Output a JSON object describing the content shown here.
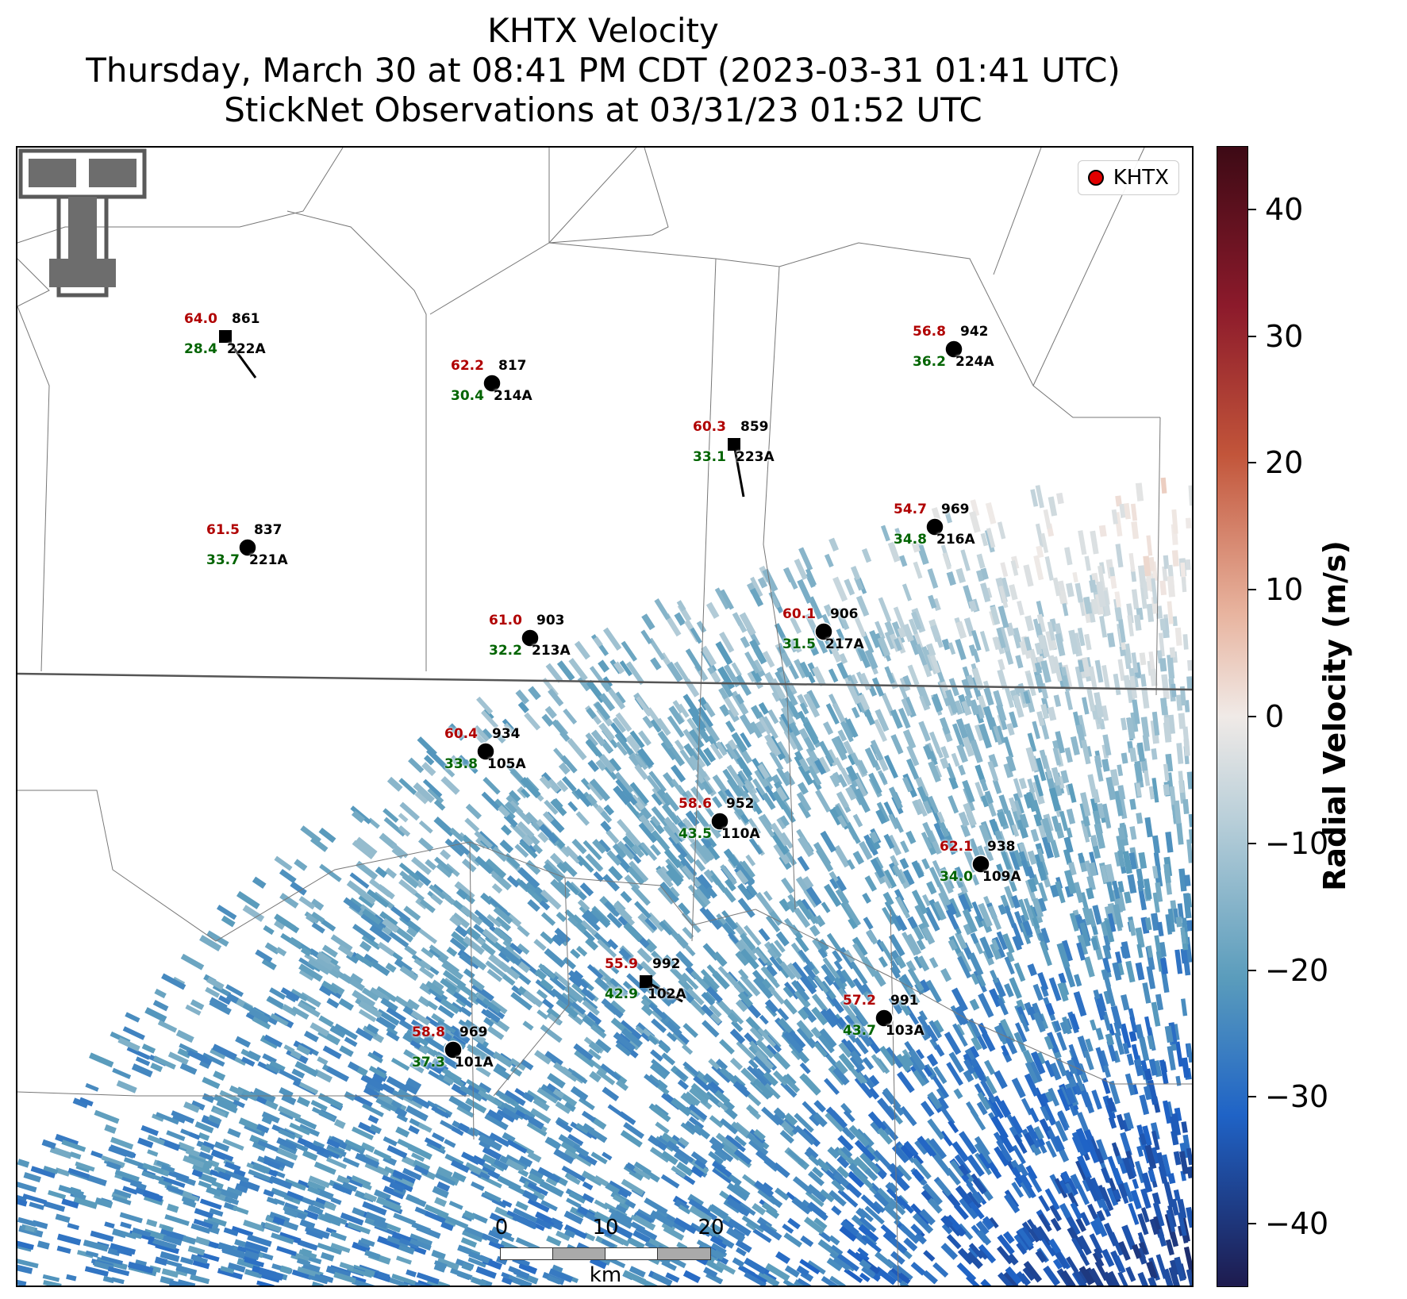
{
  "title": {
    "line1": "KHTX Velocity",
    "line2": "Thursday, March 30 at 08:41 PM CDT (2023-03-31 01:41 UTC)",
    "line3": "StickNet Observations at 03/31/23 01:52 UTC"
  },
  "legend": {
    "label": "KHTX",
    "marker_color": "#e00000"
  },
  "scale_bar": {
    "ticks": [
      "0",
      "10",
      "20"
    ],
    "unit": "km"
  },
  "colorbar": {
    "label": "Radial Velocity (m/s)",
    "ticks": [
      "40",
      "30",
      "20",
      "10",
      "0",
      "−10",
      "−20",
      "−30",
      "−40"
    ],
    "colors": {
      "max": "#3d0a15",
      "high": "#c2553a",
      "zero": "#f0eae7",
      "low": "#5a9cbc",
      "min": "#1e1b4e"
    }
  },
  "stations": [
    {
      "temp": "64.0",
      "pressure": "861",
      "dew": "28.4",
      "id": "222A",
      "marker": "square"
    },
    {
      "temp": "62.2",
      "pressure": "817",
      "dew": "30.4",
      "id": "214A",
      "marker": "circle"
    },
    {
      "temp": "56.8",
      "pressure": "942",
      "dew": "36.2",
      "id": "224A",
      "marker": "circle"
    },
    {
      "temp": "60.3",
      "pressure": "859",
      "dew": "33.1",
      "id": "223A",
      "marker": "square"
    },
    {
      "temp": "61.5",
      "pressure": "837",
      "dew": "33.7",
      "id": "221A",
      "marker": "circle"
    },
    {
      "temp": "54.7",
      "pressure": "969",
      "dew": "34.8",
      "id": "216A",
      "marker": "circle"
    },
    {
      "temp": "61.0",
      "pressure": "903",
      "dew": "32.2",
      "id": "213A",
      "marker": "circle"
    },
    {
      "temp": "60.1",
      "pressure": "906",
      "dew": "31.5",
      "id": "217A",
      "marker": "circle"
    },
    {
      "temp": "60.4",
      "pressure": "934",
      "dew": "33.8",
      "id": "105A",
      "marker": "circle"
    },
    {
      "temp": "58.6",
      "pressure": "952",
      "dew": "43.5",
      "id": "110A",
      "marker": "circle"
    },
    {
      "temp": "62.1",
      "pressure": "938",
      "dew": "34.0",
      "id": "109A",
      "marker": "circle"
    },
    {
      "temp": "55.9",
      "pressure": "992",
      "dew": "42.9",
      "id": "102A",
      "marker": "square"
    },
    {
      "temp": "57.2",
      "pressure": "991",
      "dew": "43.7",
      "id": "103A",
      "marker": "circle"
    },
    {
      "temp": "58.8",
      "pressure": "969",
      "dew": "37.3",
      "id": "101A",
      "marker": "circle"
    }
  ]
}
